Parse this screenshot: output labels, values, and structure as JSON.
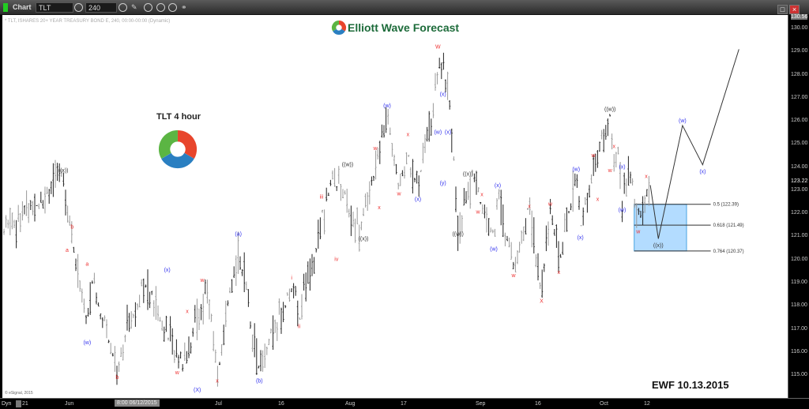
{
  "toolbar": {
    "app_label": "Chart",
    "symbol": "TLT",
    "interval": "240",
    "icons": [
      "settings-icon",
      "clock-icon",
      "pencil-icon",
      "refresh-icon",
      "play-icon",
      "alert-icon",
      "link-icon"
    ]
  },
  "window": {
    "restore": "□",
    "close": "×"
  },
  "chart_header": "* TLT, ISHARES 20+ YEAR TREASURY BOND E, 240, 00:00-00:00 (Dynamic)",
  "brand": "Elliott Wave Forecast",
  "title": "TLT 4 hour",
  "stamp": "EWF 10.13.2015",
  "copyright": "© eSignal, 2015",
  "bottom": {
    "dyn": "Dyn",
    "cursor_date": "8:00 06/12/2015"
  },
  "colors": {
    "red": "#ee3333",
    "blue": "#3333ee",
    "dark": "#333333",
    "fib_fill": "#b3dcff",
    "fib_border": "#4aa3e0"
  },
  "chart_data": {
    "type": "ohlc",
    "ylim": [
      114.6,
      130.56
    ],
    "yticks": [
      "130.00",
      "129.00",
      "128.00",
      "127.00",
      "126.00",
      "125.00",
      "124.00",
      "123.00",
      "122.00",
      "121.00",
      "120.00",
      "119.00",
      "118.00",
      "117.00",
      "116.00",
      "115.00"
    ],
    "top_price": "130.56",
    "last_price": "123.22",
    "xticks": [
      {
        "label": "21",
        "date": "05-21"
      },
      {
        "label": "Jun",
        "date": "06-01"
      },
      {
        "label": "Jul",
        "date": "07-01"
      },
      {
        "label": "16",
        "date": "07-16"
      },
      {
        "label": "Aug",
        "date": "08-03"
      },
      {
        "label": "17",
        "date": "08-17"
      },
      {
        "label": "Sep",
        "date": "09-01"
      },
      {
        "label": "16",
        "date": "09-16"
      },
      {
        "label": "Oct",
        "date": "10-01"
      },
      {
        "label": "12",
        "date": "10-12"
      }
    ],
    "price_path": [
      [
        "05-16",
        121.3
      ],
      [
        "05-31",
        123.6
      ],
      [
        "06-02",
        121.0
      ],
      [
        "06-05",
        117.2
      ],
      [
        "06-06",
        119.1
      ],
      [
        "06-11",
        115.3
      ],
      [
        "06-16",
        119.1
      ],
      [
        "06-24",
        115.5
      ],
      [
        "06-29",
        118.8
      ],
      [
        "07-01",
        115.0
      ],
      [
        "07-06",
        120.6
      ],
      [
        "07-11",
        115.3
      ],
      [
        "07-19",
        118.9
      ],
      [
        "07-21",
        117.6
      ],
      [
        "07-30",
        123.7
      ],
      [
        "08-06",
        121.2
      ],
      [
        "08-13",
        126.3
      ],
      [
        "08-16",
        123.0
      ],
      [
        "08-18",
        124.4
      ],
      [
        "08-20",
        123.0
      ],
      [
        "08-25",
        128.9
      ],
      [
        "08-27",
        125.1
      ],
      [
        "08-28",
        121.5
      ],
      [
        "08-31",
        123.5
      ],
      [
        "09-05",
        120.8
      ],
      [
        "09-06",
        122.9
      ],
      [
        "09-10",
        119.6
      ],
      [
        "09-14",
        122.2
      ],
      [
        "09-17",
        118.6
      ],
      [
        "09-19",
        122.2
      ],
      [
        "09-21",
        120.0
      ],
      [
        "09-25",
        123.7
      ],
      [
        "09-26",
        121.3
      ],
      [
        "09-29",
        123.9
      ],
      [
        "10-03",
        126.2
      ],
      [
        "10-04",
        123.7
      ],
      [
        "10-05",
        124.7
      ],
      [
        "10-06",
        122.5
      ],
      [
        "10-08",
        123.7
      ],
      [
        "10-10",
        121.7
      ],
      [
        "10-13",
        123.22
      ]
    ],
    "projection": [
      [
        "10-13",
        123.22
      ],
      [
        "10-15",
        120.9
      ],
      [
        "10-21",
        125.8
      ],
      [
        "10-26",
        124.1
      ],
      [
        "11-04",
        129.1
      ]
    ],
    "fib_box": {
      "from": "10-09",
      "to": "10-22",
      "line_end": "10-28",
      "levels": [
        {
          "label": "0.5 (122.39)",
          "price": 122.39
        },
        {
          "label": "0.618 (121.49)",
          "price": 121.49
        },
        {
          "label": "0.764 (120.37)",
          "price": 120.37
        }
      ]
    },
    "wave_labels": [
      {
        "t": "((x))",
        "c": "dark",
        "d": "05-31",
        "p": 123.85
      },
      {
        "t": "b",
        "c": "red",
        "d": "06-02",
        "p": 121.4
      },
      {
        "t": "a",
        "c": "red",
        "d": "06-01",
        "p": 120.4
      },
      {
        "t": "a",
        "c": "red",
        "d": "06-05",
        "p": 119.8
      },
      {
        "t": "(w)",
        "c": "blue",
        "d": "06-05",
        "p": 116.4
      },
      {
        "t": "b",
        "c": "red",
        "d": "06-11",
        "p": 114.9
      },
      {
        "t": "(x)",
        "c": "blue",
        "d": "06-21",
        "p": 119.55
      },
      {
        "t": "w",
        "c": "red",
        "d": "06-28",
        "p": 119.1
      },
      {
        "t": "x",
        "c": "red",
        "d": "06-25",
        "p": 117.75
      },
      {
        "t": "w",
        "c": "red",
        "d": "06-23",
        "p": 115.1
      },
      {
        "t": "(X)",
        "c": "blue",
        "d": "06-27",
        "p": 114.35
      },
      {
        "t": "x",
        "c": "red",
        "d": "07-01",
        "p": 114.75
      },
      {
        "t": "(a)",
        "c": "blue",
        "d": "07-06",
        "p": 121.1
      },
      {
        "t": "(b)",
        "c": "blue",
        "d": "07-11",
        "p": 114.75
      },
      {
        "t": "i",
        "c": "red",
        "d": "07-19",
        "p": 119.2
      },
      {
        "t": "ii",
        "c": "red",
        "d": "07-21",
        "p": 117.1
      },
      {
        "t": "iii",
        "c": "red",
        "d": "07-27",
        "p": 122.7
      },
      {
        "t": "iv",
        "c": "red",
        "d": "07-31",
        "p": 120.0
      },
      {
        "t": "((w))",
        "c": "dark",
        "d": "08-03",
        "p": 124.1
      },
      {
        "t": "((x))",
        "c": "dark",
        "d": "08-07",
        "p": 120.9
      },
      {
        "t": "w",
        "c": "red",
        "d": "08-10",
        "p": 124.8
      },
      {
        "t": "x",
        "c": "red",
        "d": "08-11",
        "p": 122.25
      },
      {
        "t": "(w)",
        "c": "blue",
        "d": "08-13",
        "p": 126.65
      },
      {
        "t": "x",
        "c": "red",
        "d": "08-18",
        "p": 125.4
      },
      {
        "t": "w",
        "c": "red",
        "d": "08-16",
        "p": 122.85
      },
      {
        "t": "(x)",
        "c": "blue",
        "d": "08-20",
        "p": 122.6
      },
      {
        "t": "W",
        "c": "red",
        "d": "08-24",
        "p": 129.2
      },
      {
        "t": "(x)",
        "c": "blue",
        "d": "08-25",
        "p": 127.15
      },
      {
        "t": "(w)",
        "c": "blue",
        "d": "08-24",
        "p": 125.5
      },
      {
        "t": "(x)",
        "c": "blue",
        "d": "08-26",
        "p": 125.5
      },
      {
        "t": "(y)",
        "c": "blue",
        "d": "08-25",
        "p": 123.3
      },
      {
        "t": "((x))",
        "c": "dark",
        "d": "08-30",
        "p": 123.7
      },
      {
        "t": "((w))",
        "c": "dark",
        "d": "08-28",
        "p": 121.1
      },
      {
        "t": "x",
        "c": "red",
        "d": "09-02",
        "p": 122.8
      },
      {
        "t": "w",
        "c": "red",
        "d": "09-01",
        "p": 122.05
      },
      {
        "t": "(x)",
        "c": "blue",
        "d": "09-06",
        "p": 123.2
      },
      {
        "t": "(w)",
        "c": "blue",
        "d": "09-05",
        "p": 120.45
      },
      {
        "t": "w",
        "c": "red",
        "d": "09-10",
        "p": 119.3
      },
      {
        "t": "x",
        "c": "red",
        "d": "09-14",
        "p": 122.3
      },
      {
        "t": "X",
        "c": "red",
        "d": "09-17",
        "p": 118.2
      },
      {
        "t": "w",
        "c": "red",
        "d": "09-19",
        "p": 122.4
      },
      {
        "t": "x",
        "c": "red",
        "d": "09-21",
        "p": 119.45
      },
      {
        "t": "(x)",
        "c": "blue",
        "d": "09-26",
        "p": 120.95
      },
      {
        "t": "(w)",
        "c": "blue",
        "d": "09-25",
        "p": 123.9
      },
      {
        "t": "w",
        "c": "red",
        "d": "09-29",
        "p": 124.5
      },
      {
        "t": "x",
        "c": "red",
        "d": "09-30",
        "p": 122.6
      },
      {
        "t": "((w))",
        "c": "dark",
        "d": "10-03",
        "p": 126.5
      },
      {
        "t": "x",
        "c": "red",
        "d": "10-04",
        "p": 124.9
      },
      {
        "t": "w",
        "c": "red",
        "d": "10-03",
        "p": 123.85
      },
      {
        "t": "(x)",
        "c": "blue",
        "d": "10-06",
        "p": 124.0
      },
      {
        "t": "(w)",
        "c": "blue",
        "d": "10-06",
        "p": 122.15
      },
      {
        "t": "x",
        "c": "red",
        "d": "10-12",
        "p": 123.6
      },
      {
        "t": "w",
        "c": "red",
        "d": "10-10",
        "p": 121.2
      },
      {
        "t": "((x))",
        "c": "dark",
        "d": "10-15",
        "p": 120.6
      },
      {
        "t": "(w)",
        "c": "blue",
        "d": "10-21",
        "p": 126.0
      },
      {
        "t": "(x)",
        "c": "blue",
        "d": "10-26",
        "p": 123.8
      }
    ]
  }
}
